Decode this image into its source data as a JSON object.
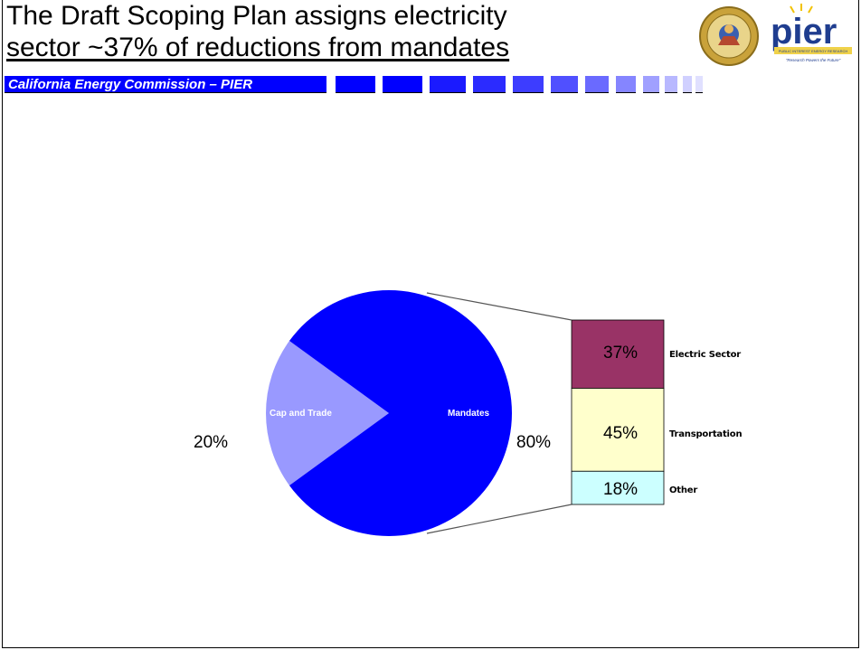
{
  "slide": {
    "title_line1": "The Draft Scoping Plan assigns electricity",
    "title_line2": "sector ~37% of reductions from mandates",
    "subtitle": "California Energy Commission – PIER"
  },
  "logo": {
    "text": "pier",
    "tagline": "\"Research Powers the Future\"",
    "banner": "PUBLIC INTEREST ENERGY RESEARCH"
  },
  "colors": {
    "band_blue": "#0000ff",
    "mandates": "#0000ff",
    "cap_and_trade": "#9999ff",
    "electric_sector": "#993366",
    "transportation": "#ffffcc",
    "other": "#ccffff"
  },
  "chart_data": {
    "type": "bar-of-pie",
    "pie": {
      "slices": [
        {
          "label": "Cap and Trade",
          "value": 20,
          "value_label": "20%"
        },
        {
          "label": "Mandates",
          "value": 80,
          "value_label": "80%"
        }
      ]
    },
    "bar": {
      "parent_slice": "Mandates",
      "segments": [
        {
          "label": "Electric Sector",
          "value": 37,
          "value_label": "37%"
        },
        {
          "label": "Transportation",
          "value": 45,
          "value_label": "45%"
        },
        {
          "label": "Other",
          "value": 18,
          "value_label": "18%"
        }
      ]
    }
  }
}
